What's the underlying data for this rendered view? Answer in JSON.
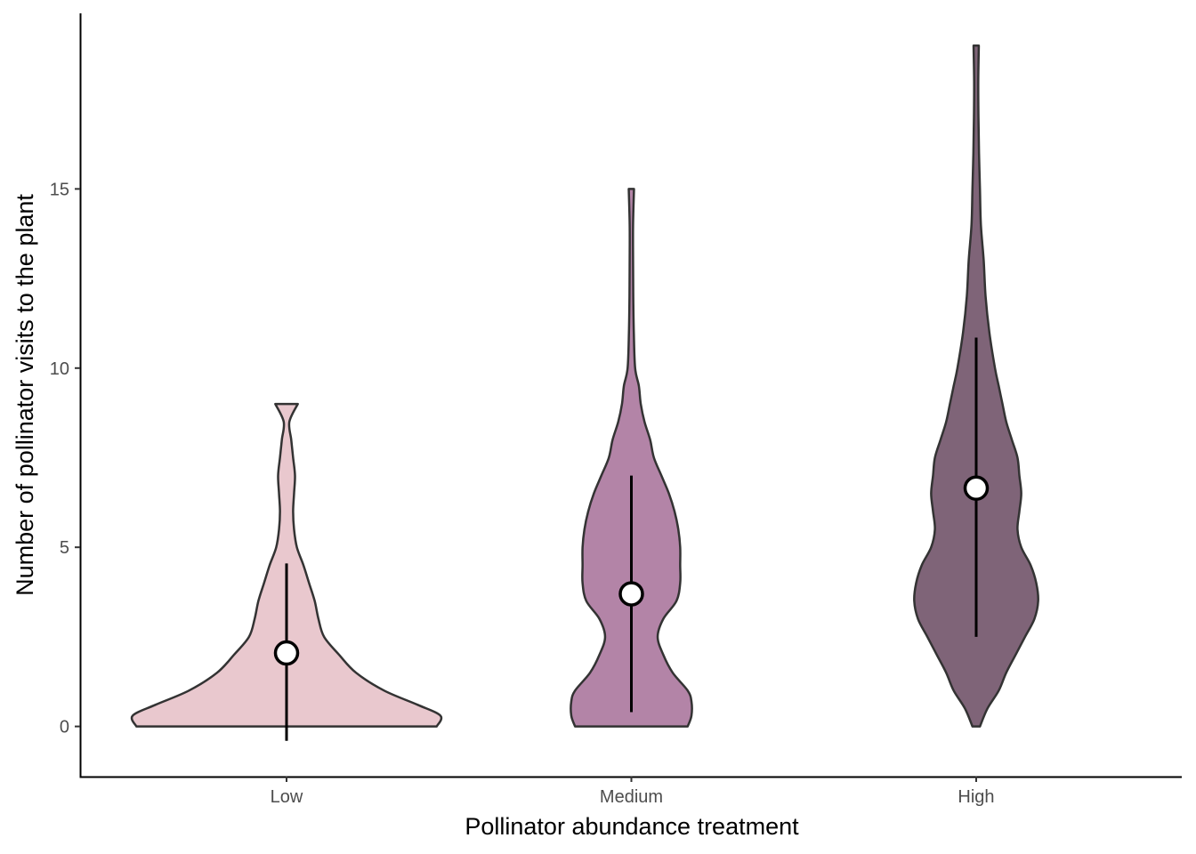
{
  "chart_data": {
    "type": "violin",
    "xlabel": "Pollinator abundance treatment",
    "ylabel": "Number of pollinator visits to the plant",
    "categories": [
      "Low",
      "Medium",
      "High"
    ],
    "ylim": [
      -1.4,
      19.9
    ],
    "yticks": [
      0,
      5,
      10,
      15
    ],
    "grid": false,
    "legend": "none",
    "series": [
      {
        "category": "Low",
        "fill": "#e9c8ce",
        "min": 0,
        "max": 9,
        "mean": 2.05,
        "error_low": -0.4,
        "error_high": 4.55,
        "density_profile": [
          [
            0,
            0.8
          ],
          [
            0.3,
            0.82
          ],
          [
            0.6,
            0.7
          ],
          [
            1.0,
            0.52
          ],
          [
            1.5,
            0.37
          ],
          [
            2.0,
            0.28
          ],
          [
            2.5,
            0.2
          ],
          [
            3.0,
            0.17
          ],
          [
            3.5,
            0.15
          ],
          [
            4.0,
            0.12
          ],
          [
            4.5,
            0.09
          ],
          [
            5.0,
            0.055
          ],
          [
            5.5,
            0.04
          ],
          [
            6.0,
            0.035
          ],
          [
            6.5,
            0.04
          ],
          [
            7.0,
            0.045
          ],
          [
            7.5,
            0.035
          ],
          [
            8.0,
            0.025
          ],
          [
            8.5,
            0.015
          ],
          [
            9.0,
            0.06
          ]
        ]
      },
      {
        "category": "Medium",
        "fill": "#b384a7",
        "min": 0,
        "max": 15,
        "mean": 3.7,
        "error_low": 0.4,
        "error_high": 7.0,
        "density_profile": [
          [
            0,
            0.3
          ],
          [
            0.3,
            0.32
          ],
          [
            0.7,
            0.32
          ],
          [
            1.0,
            0.3
          ],
          [
            1.5,
            0.22
          ],
          [
            2.0,
            0.17
          ],
          [
            2.5,
            0.14
          ],
          [
            3.0,
            0.17
          ],
          [
            3.5,
            0.24
          ],
          [
            4.0,
            0.26
          ],
          [
            4.5,
            0.26
          ],
          [
            5.0,
            0.26
          ],
          [
            5.5,
            0.25
          ],
          [
            6.0,
            0.23
          ],
          [
            6.5,
            0.2
          ],
          [
            7.0,
            0.16
          ],
          [
            7.5,
            0.12
          ],
          [
            8.0,
            0.1
          ],
          [
            8.5,
            0.07
          ],
          [
            9.0,
            0.05
          ],
          [
            9.5,
            0.04
          ],
          [
            10.0,
            0.02
          ],
          [
            11.0,
            0.013
          ],
          [
            12.0,
            0.01
          ],
          [
            13.0,
            0.009
          ],
          [
            14.0,
            0.009
          ],
          [
            15.0,
            0.014
          ]
        ]
      },
      {
        "category": "High",
        "fill": "#7f6478",
        "min": 0,
        "max": 19,
        "mean": 6.65,
        "error_low": 2.5,
        "error_high": 10.85,
        "density_profile": [
          [
            0,
            0.02
          ],
          [
            0.5,
            0.06
          ],
          [
            1.0,
            0.12
          ],
          [
            1.5,
            0.16
          ],
          [
            2.0,
            0.21
          ],
          [
            2.5,
            0.26
          ],
          [
            3.0,
            0.31
          ],
          [
            3.5,
            0.33
          ],
          [
            4.0,
            0.32
          ],
          [
            4.5,
            0.29
          ],
          [
            5.0,
            0.24
          ],
          [
            5.5,
            0.22
          ],
          [
            6.0,
            0.23
          ],
          [
            6.5,
            0.24
          ],
          [
            7.0,
            0.23
          ],
          [
            7.5,
            0.22
          ],
          [
            8.0,
            0.19
          ],
          [
            8.5,
            0.16
          ],
          [
            9.0,
            0.14
          ],
          [
            9.5,
            0.12
          ],
          [
            10.0,
            0.1
          ],
          [
            11.0,
            0.07
          ],
          [
            12.0,
            0.05
          ],
          [
            13.0,
            0.04
          ],
          [
            14.0,
            0.025
          ],
          [
            15.0,
            0.02
          ],
          [
            16.0,
            0.015
          ],
          [
            17.0,
            0.012
          ],
          [
            18.0,
            0.011
          ],
          [
            19.0,
            0.014
          ]
        ]
      }
    ]
  }
}
